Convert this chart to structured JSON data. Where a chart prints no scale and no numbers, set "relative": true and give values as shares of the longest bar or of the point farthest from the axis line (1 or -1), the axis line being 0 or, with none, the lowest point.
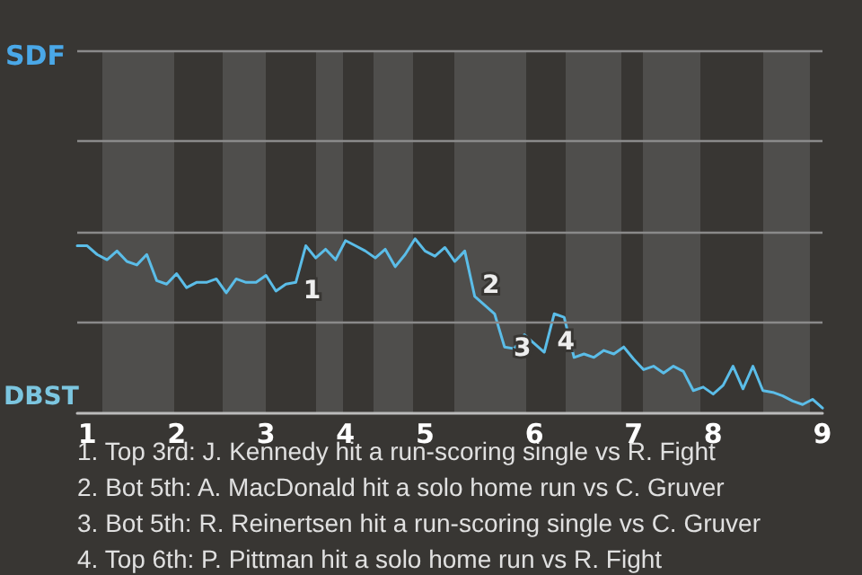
{
  "chart_data": {
    "type": "line",
    "categories": [
      null,
      "1",
      null,
      null,
      null,
      null,
      null,
      null,
      null,
      null,
      "2",
      null,
      null,
      null,
      null,
      null,
      null,
      null,
      null,
      "3",
      null,
      null,
      null,
      null,
      null,
      null,
      null,
      "4",
      null,
      null,
      null,
      null,
      null,
      null,
      null,
      "5",
      null,
      null,
      null,
      null,
      null,
      null,
      null,
      null,
      null,
      null,
      "6",
      null,
      null,
      null,
      null,
      null,
      null,
      null,
      null,
      null,
      "7",
      null,
      null,
      null,
      null,
      null,
      null,
      null,
      "8",
      null,
      null,
      null,
      null,
      null,
      null,
      null,
      null,
      null,
      null,
      "9"
    ],
    "series": [
      {
        "color": "#5bbde8",
        "values": [
          0.96,
          0.96,
          0.91,
          0.88,
          0.93,
          0.87,
          0.85,
          0.91,
          0.76,
          0.74,
          0.8,
          0.72,
          0.75,
          0.75,
          0.77,
          0.69,
          0.77,
          0.75,
          0.75,
          0.79,
          0.7,
          0.74,
          0.75,
          0.96,
          0.89,
          0.94,
          0.88,
          0.99,
          0.96,
          0.93,
          0.89,
          0.94,
          0.84,
          0.91,
          1,
          0.93,
          0.9,
          0.95,
          0.87,
          0.93,
          0.67,
          0.62,
          0.57,
          0.38,
          0.37,
          0.45,
          0.4,
          0.35,
          0.57,
          0.55,
          0.32,
          0.34,
          0.32,
          0.36,
          0.34,
          0.38,
          0.31,
          0.25,
          0.27,
          0.23,
          0.27,
          0.24,
          0.13,
          0.15,
          0.11,
          0.16,
          0.27,
          0.14,
          0.27,
          0.13,
          0.12,
          0.1,
          0.07,
          0.05,
          0.08,
          0.03
        ]
      }
    ],
    "relative": true,
    "ref_lines": [
      {
        "axis": "y",
        "value": 0.52,
        "color": "#8a8a8a"
      },
      {
        "axis": "y",
        "value": 1.04,
        "color": "#8a8a8a"
      },
      {
        "axis": "y",
        "value": 1.56,
        "color": "#8a8a8a"
      },
      {
        "axis": "y",
        "value": 2.08,
        "color": "#8a8a8a"
      }
    ],
    "annotations": [
      "SDF",
      "DBST",
      "1",
      "2",
      "3",
      "4",
      "1. Top 3rd: J. Kennedy hit a run-scoring single vs R. Fight",
      "2. Bot 5th: A. MacDonald hit a solo home run vs C. Gruver",
      "3. Bot 5th: R. Reinertsen hit a run-scoring single vs C. Gruver",
      "4. Top 6th: P. Pittman hit a solo home run vs R. Fight"
    ],
    "marker": "none",
    "line_style": "solid"
  }
}
